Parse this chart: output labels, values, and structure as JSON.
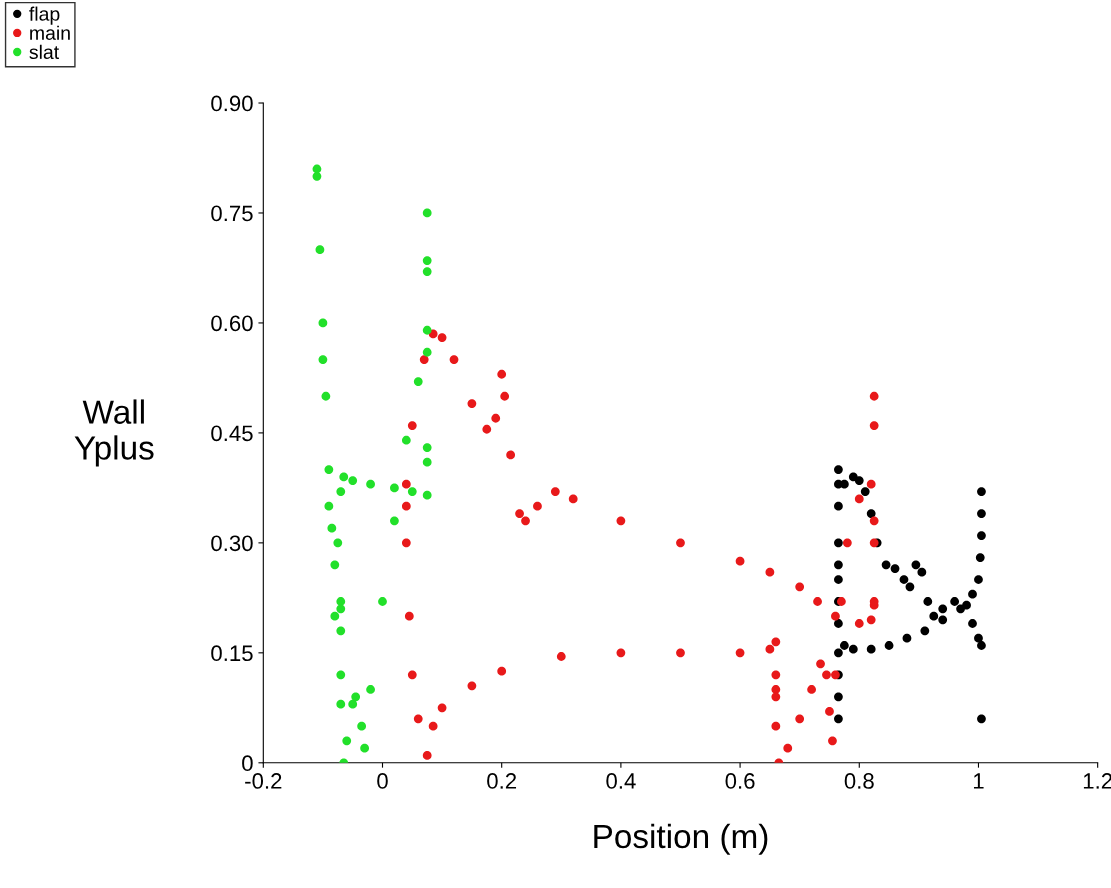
{
  "chart_data": {
    "type": "scatter",
    "xlabel": "Position (m)",
    "ylabel": "Wall\nYplus",
    "xlim": [
      -0.2,
      1.2
    ],
    "ylim": [
      0,
      0.9
    ],
    "xticks": [
      -0.2,
      0,
      0.2,
      0.4,
      0.6,
      0.8,
      1,
      1.2
    ],
    "yticks": [
      0,
      {
        "value": 0.15,
        "label": "0.15"
      },
      {
        "value": 0.3,
        "label": "0.30"
      },
      {
        "value": 0.45,
        "label": "0.45"
      },
      {
        "value": 0.6,
        "label": "0.60"
      },
      {
        "value": 0.75,
        "label": "0.75"
      },
      {
        "value": 0.9,
        "label": "0.90"
      }
    ],
    "grid": false,
    "legend": "top left",
    "marker": "circle",
    "series": [
      {
        "name": "flap",
        "color": "#000000",
        "x": [
          0.765,
          0.765,
          0.765,
          0.765,
          0.765,
          0.765,
          0.765,
          0.765,
          0.765,
          0.765,
          0.765,
          0.765,
          0.775,
          0.79,
          0.8,
          0.81,
          0.82,
          0.83,
          0.845,
          0.86,
          0.875,
          0.885,
          0.895,
          0.905,
          0.915,
          0.925,
          0.94,
          0.96,
          0.98,
          0.99,
          1.0,
          1.005,
          0.775,
          0.79,
          0.82,
          0.85,
          0.88,
          0.91,
          0.94,
          0.97,
          0.99,
          1.0,
          1.003,
          1.005,
          1.005,
          1.005,
          1.005
        ],
        "values": [
          0.4,
          0.38,
          0.35,
          0.3,
          0.27,
          0.25,
          0.22,
          0.19,
          0.15,
          0.12,
          0.09,
          0.06,
          0.38,
          0.39,
          0.385,
          0.37,
          0.34,
          0.3,
          0.27,
          0.265,
          0.25,
          0.24,
          0.27,
          0.26,
          0.22,
          0.2,
          0.21,
          0.22,
          0.215,
          0.19,
          0.17,
          0.16,
          0.16,
          0.155,
          0.155,
          0.16,
          0.17,
          0.18,
          0.195,
          0.21,
          0.23,
          0.25,
          0.28,
          0.37,
          0.34,
          0.31,
          0.06
        ]
      },
      {
        "name": "main",
        "color": "#e8191a",
        "x": [
          0.04,
          0.05,
          0.07,
          0.085,
          0.1,
          0.12,
          0.15,
          0.175,
          0.19,
          0.2,
          0.205,
          0.215,
          0.23,
          0.24,
          0.26,
          0.29,
          0.32,
          0.4,
          0.5,
          0.6,
          0.65,
          0.7,
          0.73,
          0.76,
          0.8,
          0.82,
          0.825,
          0.04,
          0.04,
          0.045,
          0.05,
          0.06,
          0.075,
          0.085,
          0.1,
          0.15,
          0.2,
          0.3,
          0.4,
          0.5,
          0.6,
          0.65,
          0.66,
          0.66,
          0.66,
          0.66,
          0.66,
          0.665,
          0.68,
          0.7,
          0.72,
          0.735,
          0.745,
          0.75,
          0.755,
          0.76,
          0.77,
          0.78,
          0.8,
          0.82,
          0.825,
          0.825,
          0.825,
          0.825,
          0.825
        ],
        "values": [
          0.38,
          0.46,
          0.55,
          0.585,
          0.58,
          0.55,
          0.49,
          0.455,
          0.47,
          0.53,
          0.5,
          0.42,
          0.34,
          0.33,
          0.35,
          0.37,
          0.36,
          0.33,
          0.3,
          0.275,
          0.26,
          0.24,
          0.22,
          0.2,
          0.19,
          0.195,
          0.215,
          0.35,
          0.3,
          0.2,
          0.12,
          0.06,
          0.01,
          0.05,
          0.075,
          0.105,
          0.125,
          0.145,
          0.15,
          0.15,
          0.15,
          0.155,
          0.165,
          0.12,
          0.1,
          0.09,
          0.05,
          0.0,
          0.02,
          0.06,
          0.1,
          0.135,
          0.12,
          0.07,
          0.03,
          0.12,
          0.22,
          0.3,
          0.36,
          0.38,
          0.33,
          0.5,
          0.46,
          0.3,
          0.22
        ]
      },
      {
        "name": "slat",
        "color": "#22e02a",
        "x": [
          -0.11,
          -0.105,
          -0.1,
          -0.095,
          -0.09,
          -0.085,
          -0.08,
          -0.075,
          -0.07,
          -0.065,
          -0.05,
          -0.02,
          0.02,
          0.05,
          0.075,
          -0.11,
          -0.1,
          -0.09,
          -0.08,
          -0.07,
          -0.065,
          -0.06,
          -0.05,
          -0.045,
          -0.035,
          -0.03,
          -0.02,
          0,
          0.02,
          0.04,
          0.06,
          0.075,
          0.075,
          0.075,
          0.075,
          0.075,
          0.075,
          0.075,
          -0.07,
          -0.07,
          -0.07,
          -0.07
        ],
        "values": [
          0.81,
          0.7,
          0.6,
          0.5,
          0.4,
          0.32,
          0.27,
          0.3,
          0.37,
          0.39,
          0.385,
          0.38,
          0.375,
          0.37,
          0.365,
          0.8,
          0.55,
          0.35,
          0.2,
          0.08,
          0.0,
          0.03,
          0.08,
          0.09,
          0.05,
          0.02,
          0.1,
          0.22,
          0.33,
          0.44,
          0.52,
          0.56,
          0.75,
          0.685,
          0.67,
          0.59,
          0.43,
          0.41,
          0.22,
          0.21,
          0.18,
          0.12
        ]
      }
    ]
  }
}
